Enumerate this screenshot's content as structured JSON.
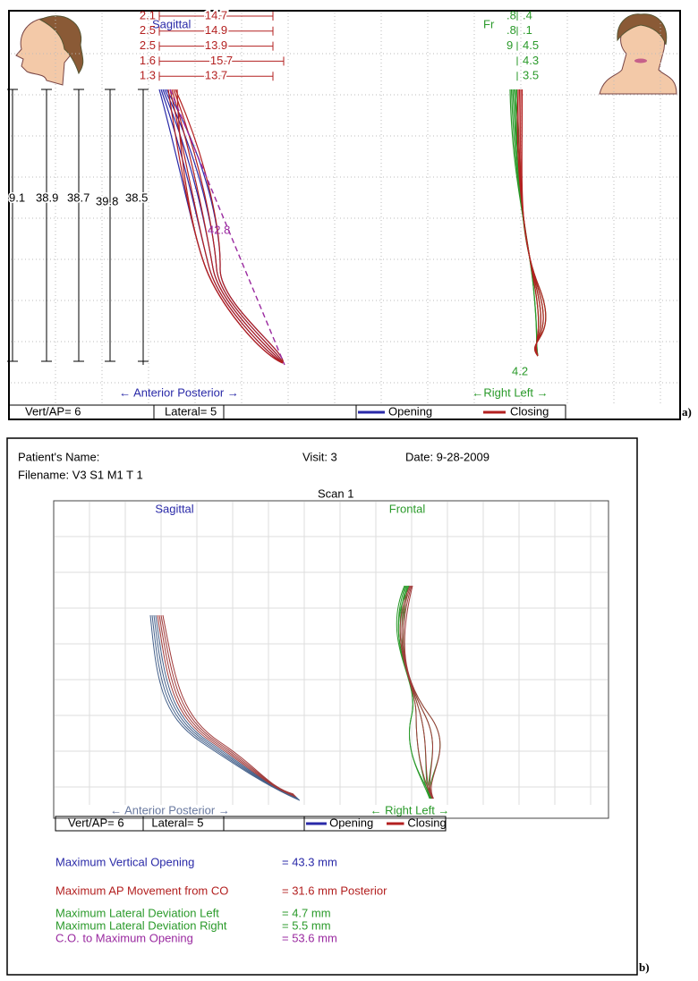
{
  "panel_a": {
    "label": "a)",
    "sagittal_title": "Sagittal",
    "frontal_title": "Fr",
    "ap_measures": [
      [
        "2.1",
        "14.7"
      ],
      [
        "2.5",
        "14.9"
      ],
      [
        "2.5",
        "13.9"
      ],
      [
        "1.6",
        "15.7"
      ],
      [
        "1.3",
        "13.7"
      ]
    ],
    "vertical_measures": [
      "9.1",
      "38.9",
      "38.7",
      "39.8",
      "38.5"
    ],
    "diagonal": "42.8",
    "lateral_measures": [
      [
        ".8",
        ".4"
      ],
      [
        ".8",
        ".1"
      ],
      [
        "9",
        "4.5"
      ],
      [
        "",
        "4.3"
      ],
      [
        "",
        "3.5"
      ]
    ],
    "bottom_lateral": "4.2",
    "ap_axis": "← Anterior  Posterior →",
    "lr_axis": "←Right   Left →",
    "footer": {
      "vert_ap": "Vert/AP= 6",
      "lateral": "Lateral= 5",
      "opening": "Opening",
      "closing": "Closing"
    }
  },
  "panel_b": {
    "label": "b)",
    "patient_name": "Patient's Name:",
    "visit": "Visit: 3",
    "date": "Date: 9-28-2009",
    "filename": "Filename: V3 S1    M1  T 1",
    "scan": "Scan 1",
    "sagittal_title": "Sagittal",
    "frontal_title": "Frontal",
    "ap_axis": "← Anterior  Posterior →",
    "lr_axis": "← Right   Left →",
    "footer": {
      "vert_ap": "Vert/AP= 6",
      "lateral": "Lateral= 5",
      "opening": "Opening",
      "closing": "Closing"
    },
    "results": [
      [
        "Maximum Vertical Opening",
        "= 43.3 mm"
      ],
      [
        "Maximum AP Movement from CO",
        "= 31.6 mm Posterior"
      ],
      [
        "Maximum Lateral Deviation Left",
        "= 4.7 mm"
      ],
      [
        "Maximum Lateral Deviation Right",
        "= 5.5 mm"
      ],
      [
        "C.O. to Maximum Opening",
        "= 53.6 mm"
      ]
    ]
  }
}
